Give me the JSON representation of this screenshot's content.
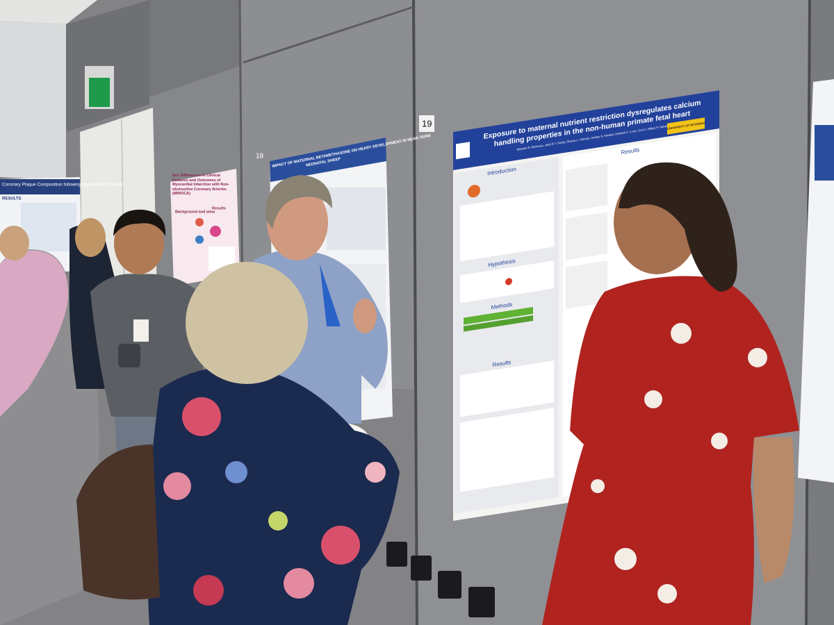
{
  "posters": [
    {
      "number": "19",
      "title_line1": "Exposure to maternal nutrient restriction dysregulates calcium",
      "title_line2": "handling properties in the non-human primate fetal heart",
      "authors": "Melanie R. Bertossa, Jack R.T. Darby, Stacey L. Holman, Ashley S. Meakin, Mitchell C. Lock, Cun Li, Hillary F. Huber",
      "logo": "UNIVERSITY OF WYOMING",
      "sections": [
        "Introduction",
        "Hypothesis",
        "Methods",
        "Results",
        "Results"
      ]
    },
    {
      "number": "18",
      "title_line1": "IMPACT OF MATERNAL BETAMETHASONE ON HEART DEVELOPMENT IN NEAR-TERM",
      "title_line2": "NEONATAL SHEEP"
    },
    {
      "title": "Sex Differences in Clinical Features and Outcomes of Myocardial Infarction with Non-obstructive Coronary Arteries (MINOCA)",
      "sections": [
        "Background and aims",
        "Results"
      ]
    },
    {
      "title": "Coronary Plaque Composition following Myocardial Infarction",
      "sections": [
        "RESULTS"
      ]
    }
  ]
}
